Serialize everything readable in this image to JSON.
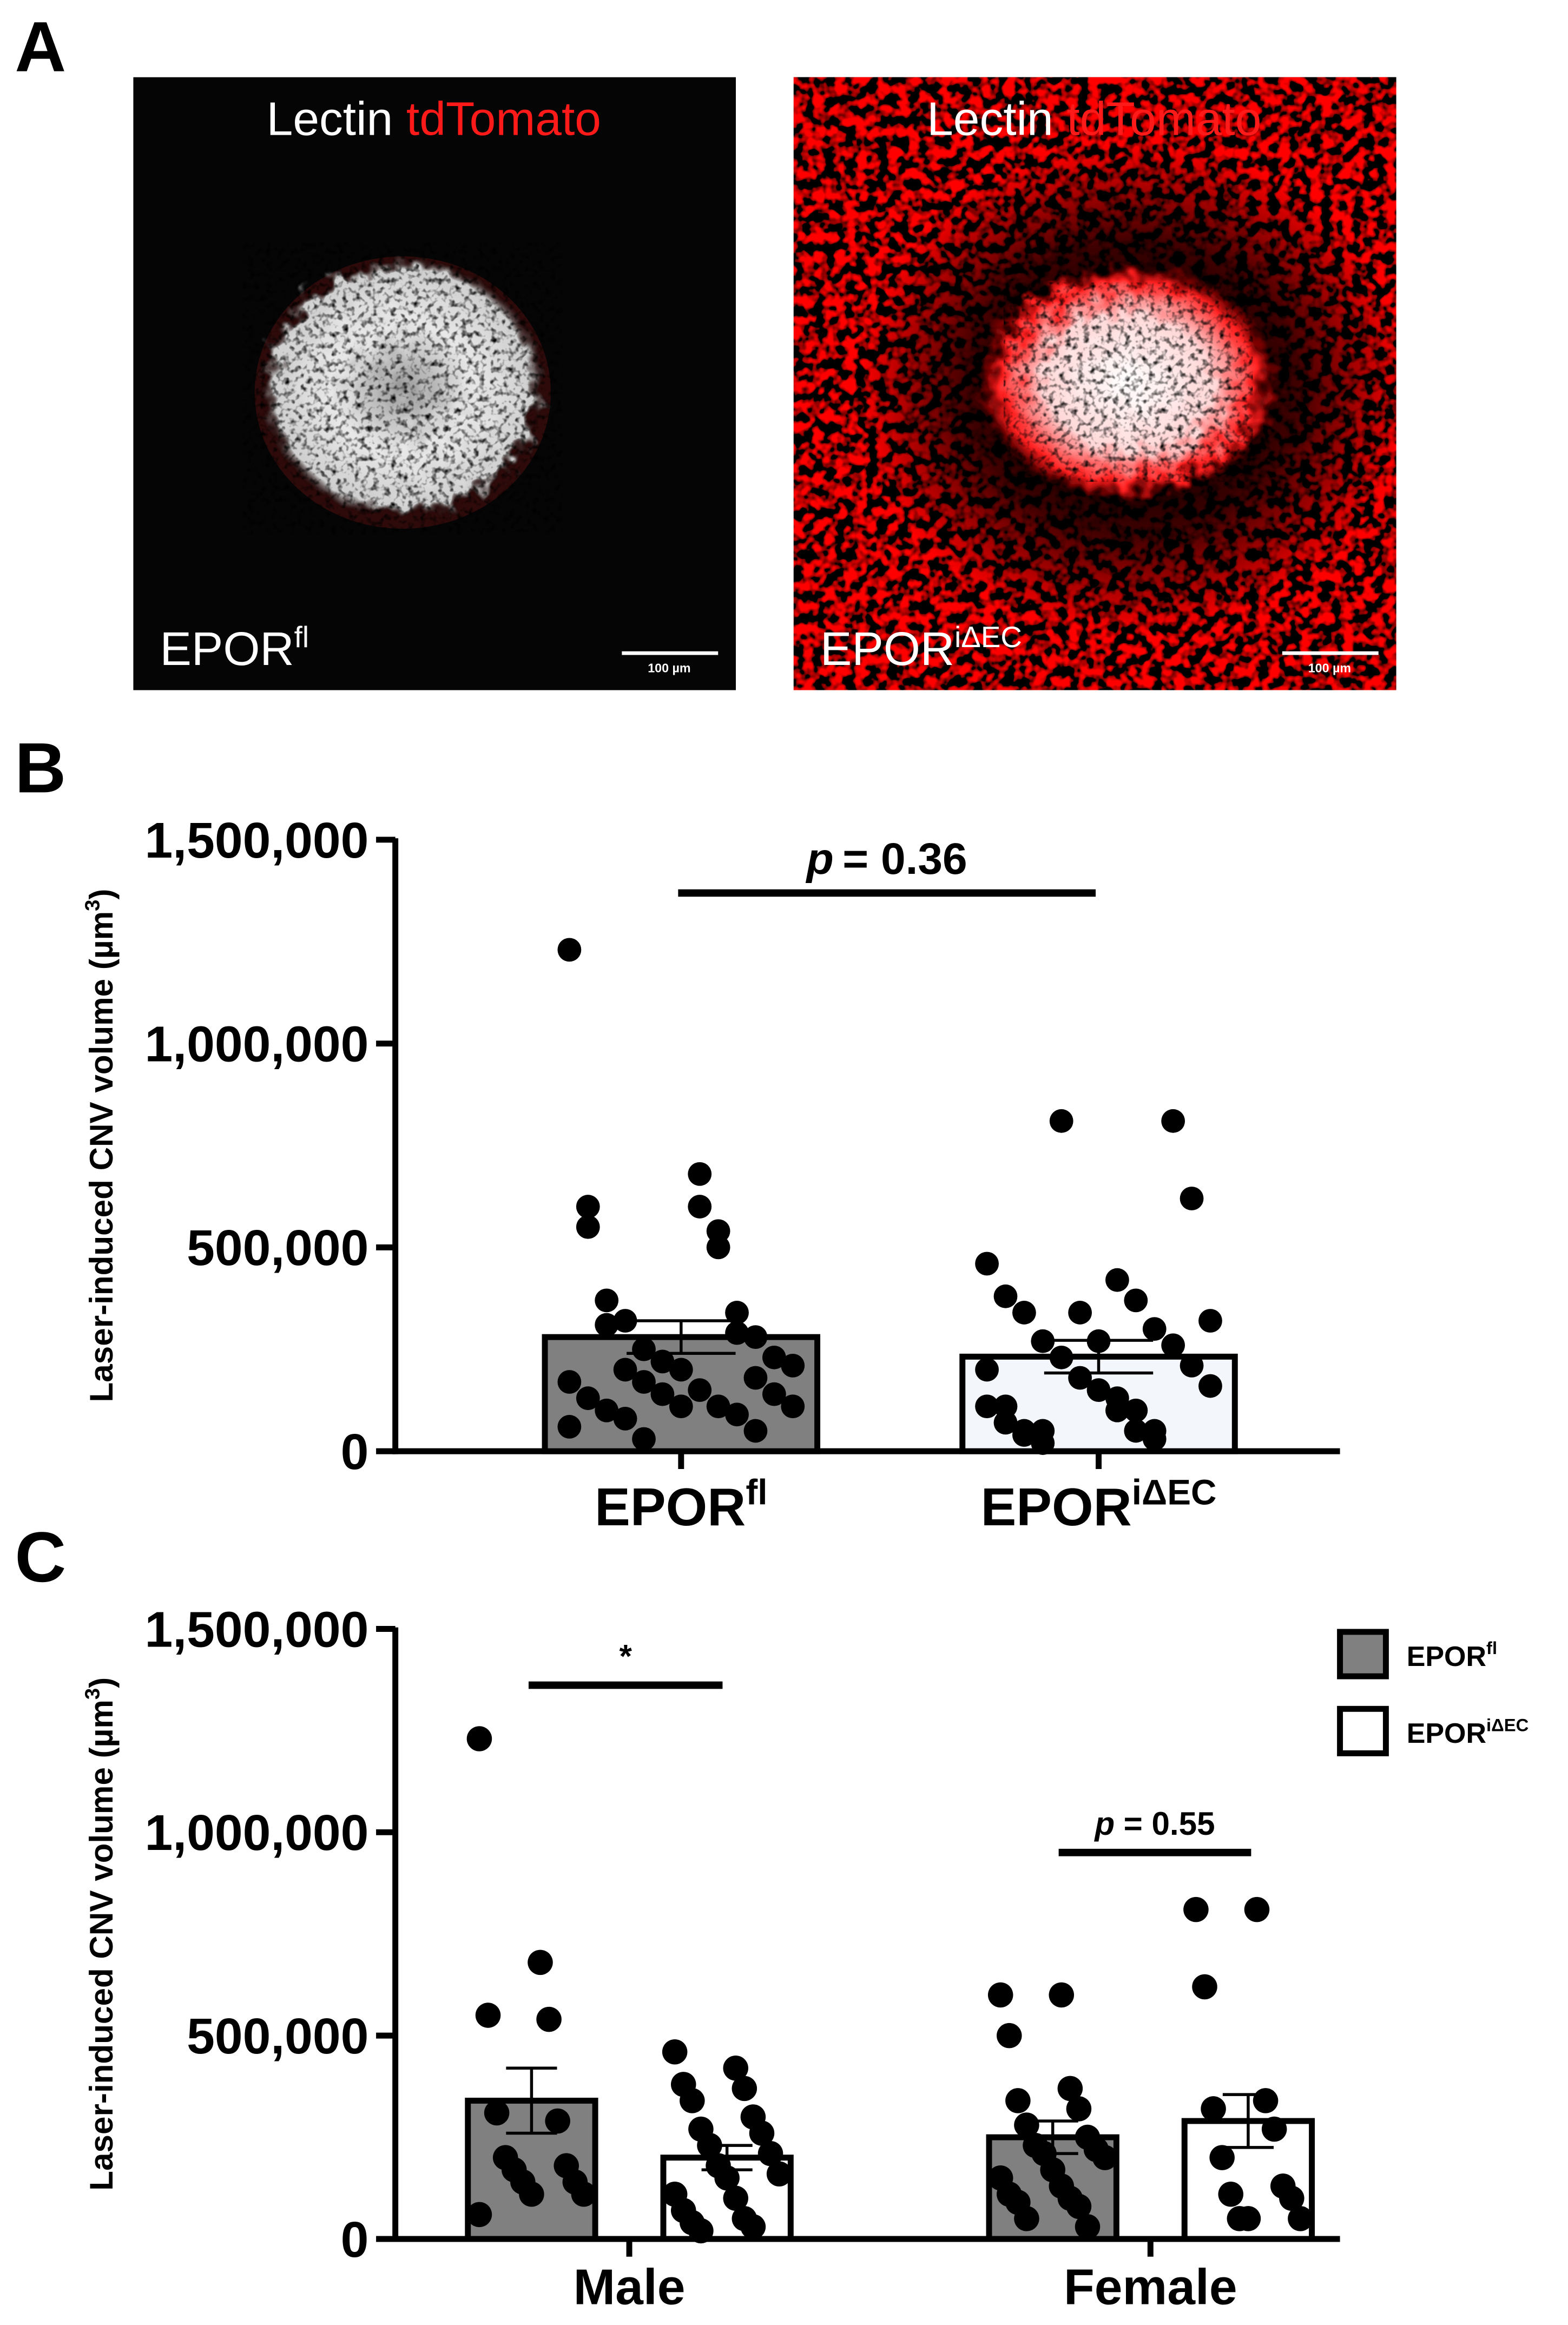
{
  "panel_a": {
    "label": "A",
    "images": [
      {
        "stain": "Lectin",
        "stain_2": "tdTomato",
        "genotype": "EPOR",
        "genotype_sup": "fl",
        "scale_bar": "100 µm"
      },
      {
        "stain": "Lectin",
        "stain_2": "tdTomato",
        "genotype": "EPOR",
        "genotype_sup": "iΔEC",
        "scale_bar": "100 µm"
      }
    ]
  },
  "chart_data": [
    {
      "type": "bar",
      "panel_label": "B",
      "ylabel": "Laser-induced CNV volume (µm",
      "ylabel_sup": "3",
      "ylabel_end": ")",
      "categories": [
        "EPOR",
        "EPOR"
      ],
      "category_sups": [
        "fl",
        "iΔEC"
      ],
      "ylim": [
        0,
        1500000
      ],
      "yticks": [
        0,
        {
          "value": 500000,
          "label": "500,000"
        },
        {
          "value": 1000000,
          "label": "1,000,000"
        },
        {
          "value": 1500000,
          "label": "1,500,000"
        }
      ],
      "series": [
        {
          "colors": [
            "#808080",
            "#f3f6fb"
          ],
          "values": [
            280000,
            232000
          ],
          "errors": [
            40000,
            40000
          ],
          "points": [
            [
              1230000,
              680000,
              550000,
              540000,
              310000,
              290000,
              200000,
              180000,
              170000,
              140000,
              140000,
              110000,
              110000,
              60000,
              600000,
              600000,
              500000,
              370000,
              340000,
              320000,
              280000,
              250000,
              230000,
              220000,
              210000,
              200000,
              170000,
              150000,
              130000,
              110000,
              100000,
              90000,
              80000,
              50000,
              30000
            ],
            [
              460000,
              420000,
              380000,
              370000,
              340000,
              300000,
              270000,
              260000,
              230000,
              210000,
              180000,
              160000,
              150000,
              110000,
              100000,
              70000,
              50000,
              40000,
              30000,
              20000,
              810000,
              810000,
              620000,
              340000,
              320000,
              270000,
              200000,
              130000,
              110000,
              100000,
              50000,
              50000,
              50000
            ]
          ]
        }
      ],
      "annotations": [
        {
          "italic": "p",
          "text": "= 0.36"
        }
      ]
    },
    {
      "type": "grouped_bar",
      "panel_label": "C",
      "ylabel": "Laser-induced CNV volume (µm",
      "ylabel_sup": "3",
      "ylabel_end": ")",
      "categories": [
        "Male",
        "Female"
      ],
      "ylim": [
        0,
        1500000
      ],
      "yticks": [
        0,
        {
          "value": 500000,
          "label": "500,000"
        },
        {
          "value": 1000000,
          "label": "1,000,000"
        },
        {
          "value": 1500000,
          "label": "1,500,000"
        }
      ],
      "legend": "top-right",
      "series": [
        {
          "name": "EPOR",
          "name_sup": "fl",
          "color": "#808080",
          "values": [
            340000,
            250000
          ],
          "errors": [
            80000,
            40000
          ],
          "points": [
            [
              1230000,
              680000,
              550000,
              540000,
              310000,
              290000,
              200000,
              180000,
              170000,
              140000,
              140000,
              110000,
              110000,
              60000
            ],
            [
              600000,
              600000,
              500000,
              370000,
              340000,
              320000,
              280000,
              250000,
              230000,
              220000,
              210000,
              200000,
              170000,
              150000,
              130000,
              110000,
              100000,
              90000,
              80000,
              50000,
              30000
            ]
          ]
        },
        {
          "name": "EPOR",
          "name_sup": "iΔEC",
          "color": "#ffffff",
          "values": [
            200000,
            290000
          ],
          "errors": [
            30000,
            65000
          ],
          "points": [
            [
              460000,
              420000,
              380000,
              370000,
              340000,
              300000,
              270000,
              260000,
              230000,
              210000,
              180000,
              160000,
              150000,
              110000,
              100000,
              70000,
              50000,
              40000,
              30000,
              20000
            ],
            [
              810000,
              810000,
              620000,
              340000,
              320000,
              270000,
              200000,
              130000,
              110000,
              100000,
              50000,
              50000,
              50000
            ]
          ]
        }
      ],
      "annotations": [
        {
          "text": "*"
        },
        {
          "italic": "p",
          "text": "= 0.55"
        }
      ]
    }
  ]
}
